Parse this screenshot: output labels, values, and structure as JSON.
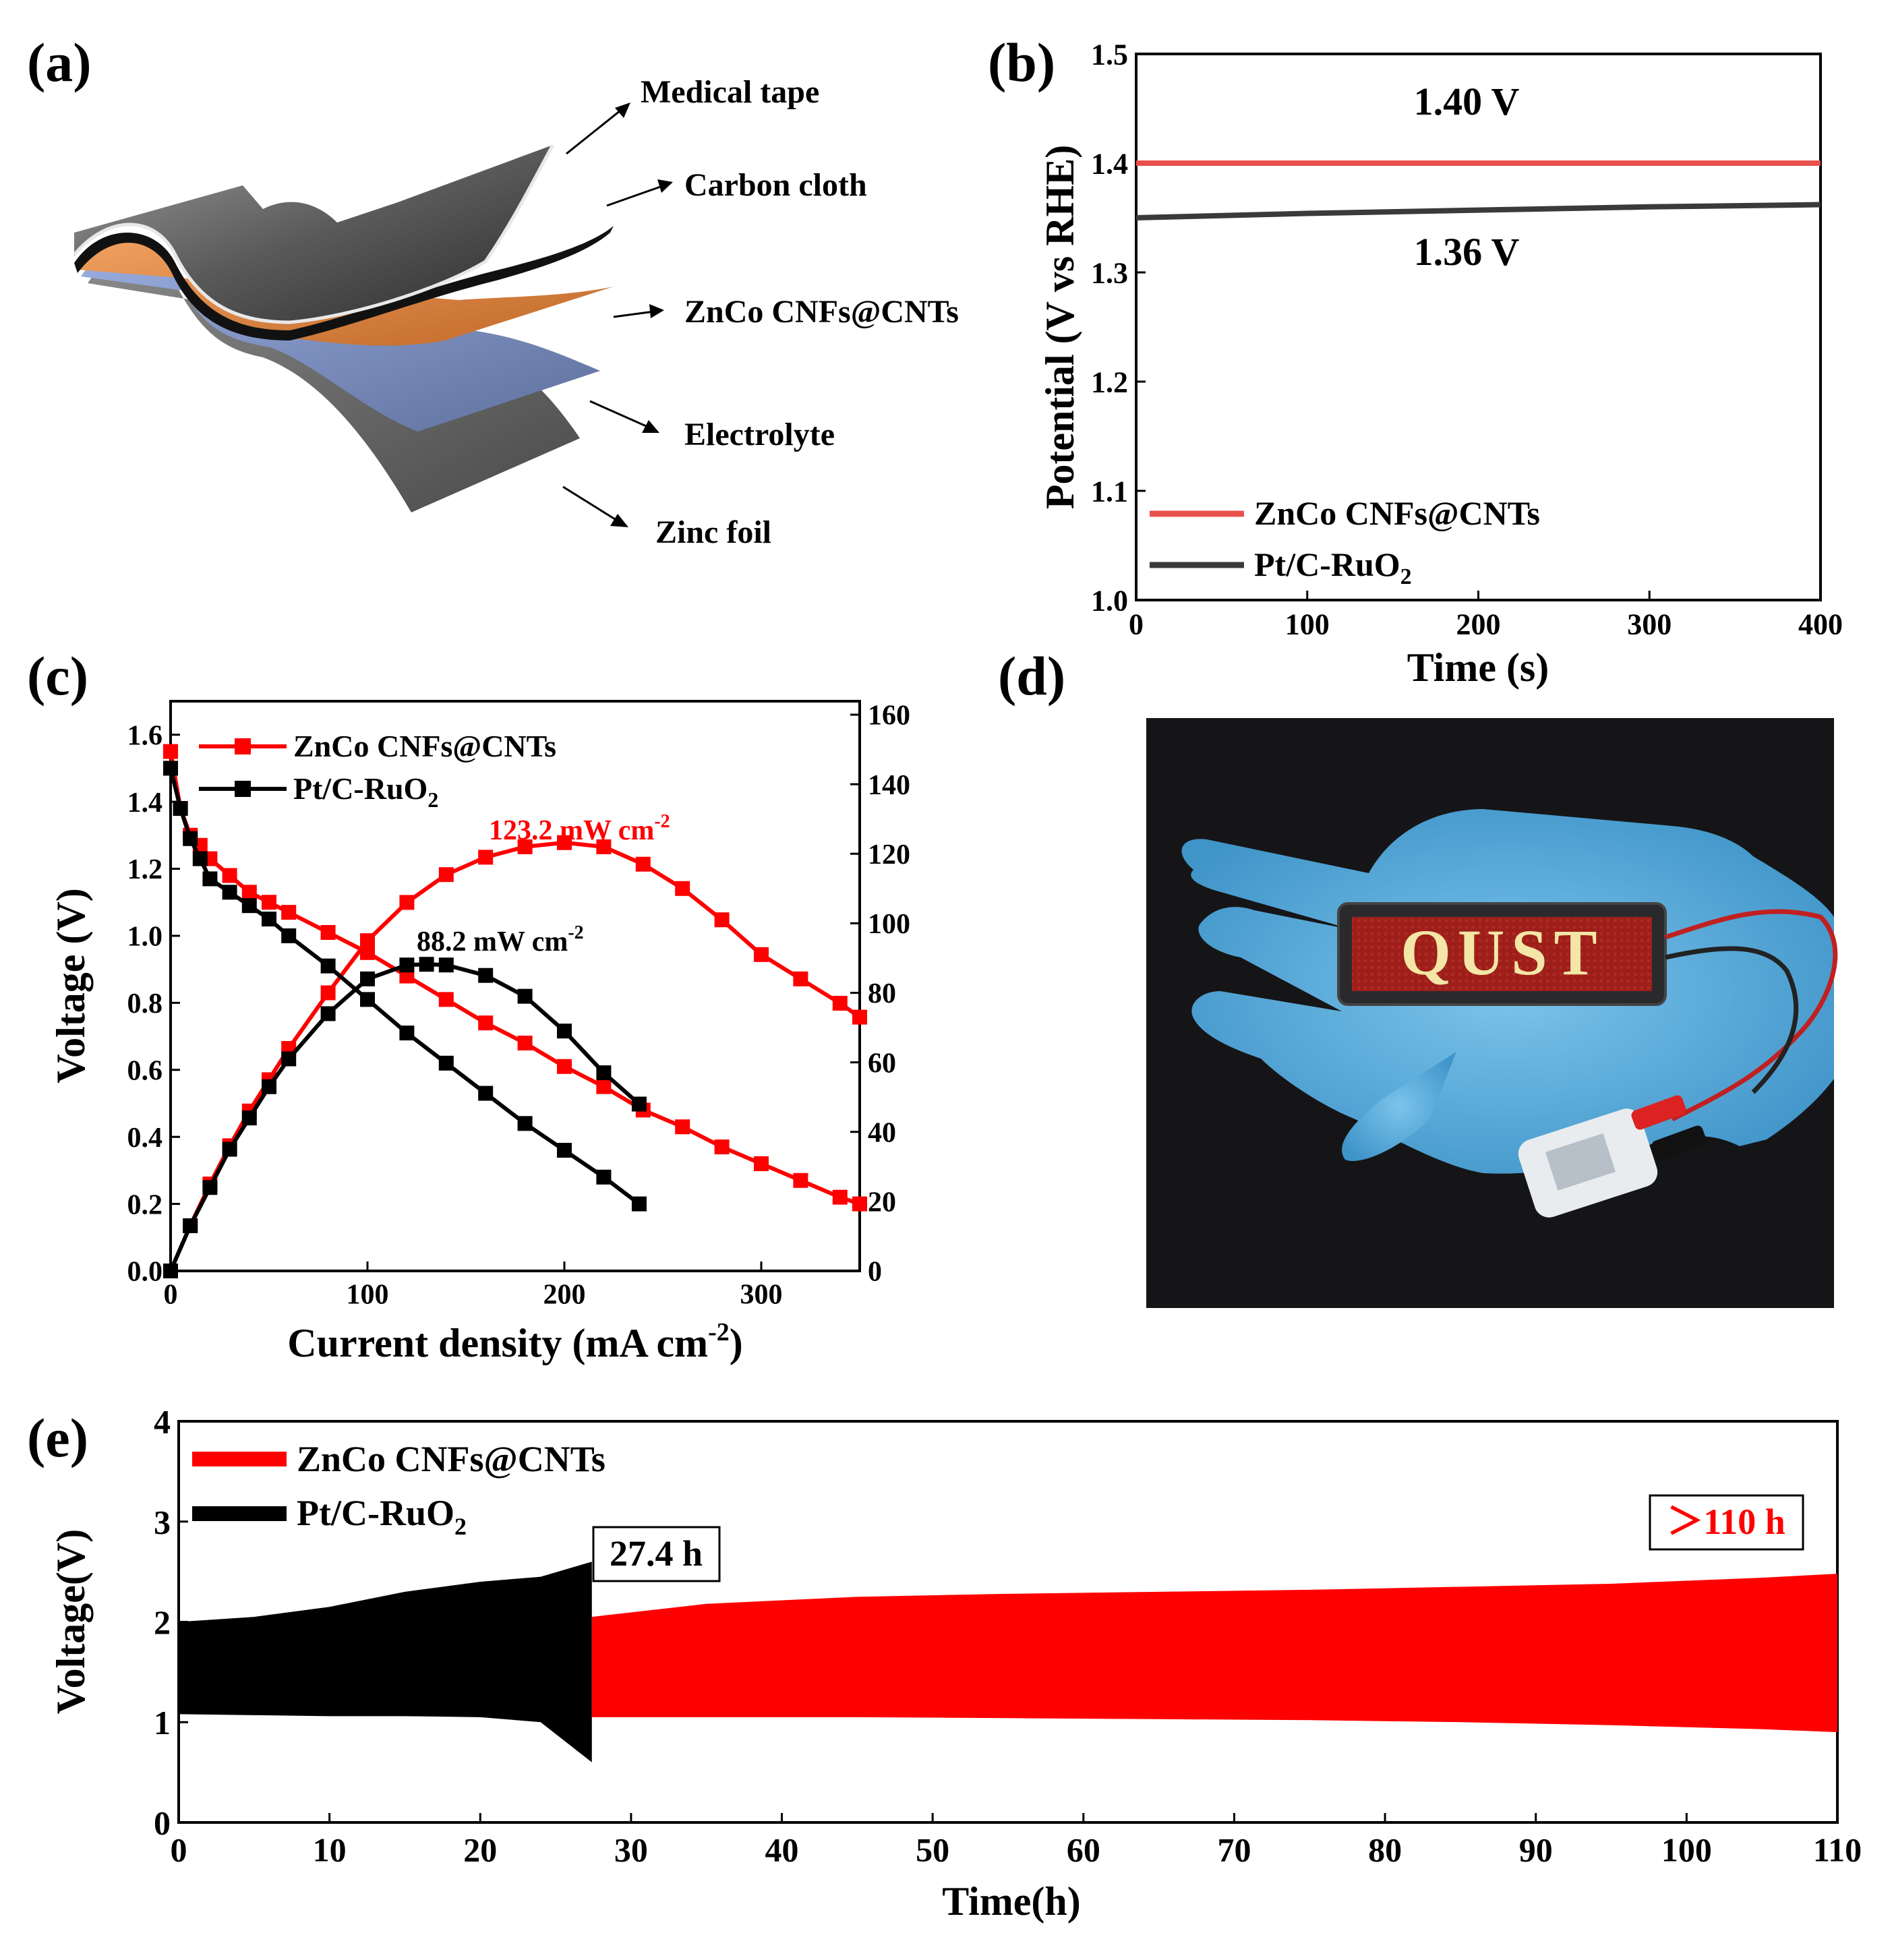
{
  "panels": {
    "a": {
      "letter": "(a)",
      "layers": [
        "Medical tape",
        "Carbon cloth",
        "ZnCo CNFs@CNTs",
        "Electrolyte",
        "Zinc foil"
      ]
    },
    "b": {
      "letter": "(b)"
    },
    "c": {
      "letter": "(c)"
    },
    "d": {
      "letter": "(d)",
      "display_text": "QUST"
    },
    "e": {
      "letter": "(e)"
    }
  },
  "colors": {
    "zn": "#ff0000",
    "pt": "#000000",
    "pt_b": "#3a3a3a",
    "zn_b": "#e8504c"
  },
  "chart_data": [
    {
      "panel": "b",
      "type": "line",
      "xlabel": "Time (s)",
      "ylabel": "Potential (V vs RHE)",
      "xlim": [
        0,
        400
      ],
      "ylim": [
        1.0,
        1.5
      ],
      "xticks": [
        0,
        100,
        200,
        300,
        400
      ],
      "yticks": [
        1.0,
        1.1,
        1.2,
        1.3,
        1.4,
        1.5
      ],
      "legend": "bottom-left",
      "series": [
        {
          "name": "ZnCo CNFs@CNTs",
          "x": [
            0,
            100,
            200,
            300,
            400
          ],
          "y": [
            1.4,
            1.4,
            1.4,
            1.4,
            1.4
          ]
        },
        {
          "name": "Pt/C-RuO2",
          "x": [
            0,
            100,
            200,
            300,
            400
          ],
          "y": [
            1.35,
            1.354,
            1.357,
            1.36,
            1.362
          ]
        }
      ],
      "annotations": [
        {
          "text": "1.40 V",
          "x": 200,
          "y": 1.46
        },
        {
          "text": "1.36 V",
          "x": 200,
          "y": 1.32
        }
      ]
    },
    {
      "panel": "c",
      "type": "line",
      "xlabel": "Current density (mA cm⁻²)",
      "ylabel": "Voltage (V)",
      "xlim": [
        0,
        350
      ],
      "ylim": [
        0,
        1.7
      ],
      "y2lim": [
        0,
        160
      ],
      "xticks": [
        0,
        100,
        200,
        300
      ],
      "yticks": [
        0.0,
        0.2,
        0.4,
        0.6,
        0.8,
        1.0,
        1.2,
        1.4,
        1.6
      ],
      "y2ticks": [
        0,
        20,
        40,
        60,
        80,
        100,
        120,
        140,
        160
      ],
      "legend": "top-left",
      "series": [
        {
          "name": "ZnCo CNFs@CNTs",
          "axis": "left",
          "x": [
            0,
            5,
            10,
            15,
            20,
            30,
            40,
            50,
            60,
            80,
            100,
            120,
            140,
            160,
            180,
            200,
            220,
            240,
            260,
            280,
            300,
            320,
            340,
            350
          ],
          "y": [
            1.55,
            1.38,
            1.3,
            1.27,
            1.23,
            1.18,
            1.13,
            1.1,
            1.07,
            1.01,
            0.95,
            0.88,
            0.81,
            0.74,
            0.68,
            0.61,
            0.55,
            0.48,
            0.43,
            0.37,
            0.32,
            0.27,
            0.22,
            0.2
          ]
        },
        {
          "name": "ZnCo CNFs@CNTs",
          "axis": "right",
          "x": [
            0,
            10,
            20,
            30,
            40,
            50,
            60,
            80,
            100,
            120,
            140,
            160,
            180,
            200,
            220,
            240,
            260,
            280,
            300,
            320,
            340,
            350
          ],
          "y": [
            0,
            13,
            25,
            36,
            46,
            55,
            64,
            80,
            95,
            106,
            114,
            119,
            122,
            123.2,
            122,
            117,
            110,
            101,
            91,
            84,
            77,
            73
          ]
        },
        {
          "name": "Pt/C-RuO2",
          "axis": "left",
          "x": [
            0,
            5,
            10,
            15,
            20,
            30,
            40,
            50,
            60,
            80,
            100,
            120,
            140,
            160,
            180,
            200,
            220,
            238
          ],
          "y": [
            1.5,
            1.38,
            1.29,
            1.23,
            1.17,
            1.13,
            1.09,
            1.05,
            1.0,
            0.91,
            0.81,
            0.71,
            0.62,
            0.53,
            0.44,
            0.36,
            0.28,
            0.2
          ]
        },
        {
          "name": "Pt/C-RuO2",
          "axis": "right",
          "x": [
            0,
            10,
            20,
            30,
            40,
            50,
            60,
            80,
            100,
            120,
            130,
            140,
            160,
            180,
            200,
            220,
            238
          ],
          "y": [
            0,
            13,
            24,
            35,
            44,
            53,
            61,
            74,
            84,
            88,
            88.2,
            88,
            85,
            79,
            69,
            57,
            48
          ]
        }
      ],
      "annotations": [
        {
          "text": "123.2 mW cm⁻²",
          "color": "#ff0000"
        },
        {
          "text": "88.2 mW cm⁻²",
          "color": "#000000"
        }
      ]
    },
    {
      "panel": "e",
      "type": "line",
      "xlabel": "Time(h)",
      "ylabel": "Voltage(V)",
      "xlim": [
        0,
        110
      ],
      "ylim": [
        0,
        4
      ],
      "xticks": [
        0,
        10,
        20,
        30,
        40,
        50,
        60,
        70,
        80,
        90,
        100,
        110
      ],
      "yticks": [
        0,
        1,
        2,
        3,
        4
      ],
      "legend": "top-left",
      "series": [
        {
          "name": "Pt/C-RuO2",
          "band": "charge-discharge envelope",
          "x": [
            0,
            5,
            10,
            15,
            20,
            24,
            27.4
          ],
          "upper": [
            2.0,
            2.05,
            2.15,
            2.3,
            2.4,
            2.45,
            2.6
          ],
          "lower": [
            1.08,
            1.07,
            1.06,
            1.06,
            1.05,
            1.0,
            0.6
          ]
        },
        {
          "name": "ZnCo CNFs@CNTs",
          "band": "charge-discharge envelope",
          "x": [
            27.4,
            35,
            45,
            55,
            65,
            75,
            85,
            95,
            105,
            110
          ],
          "upper": [
            2.05,
            2.18,
            2.25,
            2.28,
            2.3,
            2.32,
            2.35,
            2.38,
            2.44,
            2.48
          ],
          "lower": [
            1.05,
            1.05,
            1.05,
            1.04,
            1.03,
            1.02,
            1.0,
            0.97,
            0.93,
            0.9
          ]
        }
      ],
      "annotations": [
        {
          "text": "27.4 h",
          "color": "#000000"
        },
        {
          "text": "＞110 h",
          "color": "#ff0000"
        }
      ]
    }
  ]
}
